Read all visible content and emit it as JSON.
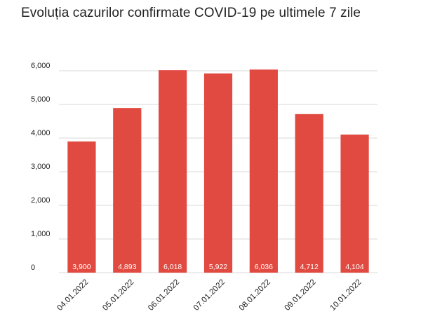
{
  "chart_data": {
    "type": "bar",
    "title": "Evoluția cazurilor confirmate COVID-19 pe ultimele 7 zile",
    "xlabel": "",
    "ylabel": "",
    "categories": [
      "04.01.2022",
      "05.01.2022",
      "06.01.2022",
      "07.01.2022",
      "08.01.2022",
      "09.01.2022",
      "10.01.2022"
    ],
    "values": [
      3900,
      4893,
      6018,
      5922,
      6036,
      4712,
      4104
    ],
    "value_labels": [
      "3,900",
      "4,893",
      "6,018",
      "5,922",
      "6,036",
      "4,712",
      "4,104"
    ],
    "ylim": [
      0,
      6000
    ],
    "yticks": [
      0,
      1000,
      2000,
      3000,
      4000,
      5000,
      6000
    ],
    "ytick_labels": [
      "0",
      "1,000",
      "2,000",
      "3,000",
      "4,000",
      "5,000",
      "6,000"
    ],
    "grid": true,
    "legend": "none",
    "colors": {
      "bar": "#e14a40",
      "grid": "#d9d9d9",
      "bar_label": "#ffffff"
    }
  }
}
